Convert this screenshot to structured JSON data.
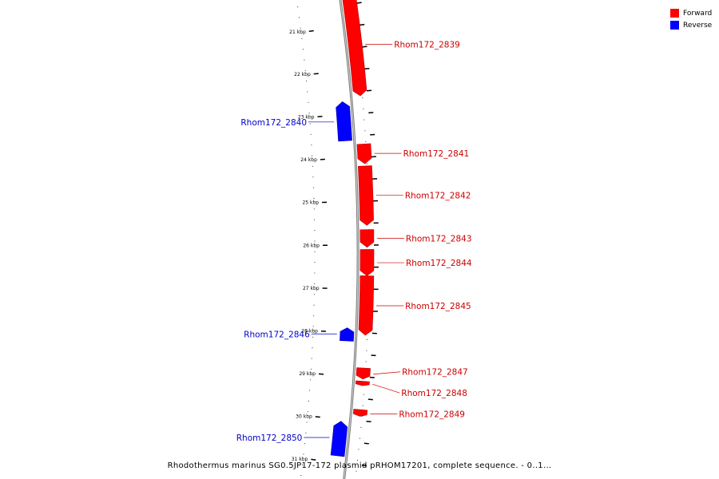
{
  "legend": {
    "forward": {
      "label": "Forward",
      "color": "#ff0000"
    },
    "reverse": {
      "label": "Reverse",
      "color": "#0000ff"
    }
  },
  "caption": "Rhodothermus marinus SG0.5JP17-172 plasmid pRHOM17201, complete sequence. - 0..1...",
  "ticks": [
    {
      "label": "21 kbp",
      "kbp": 21
    },
    {
      "label": "22 kbp",
      "kbp": 22
    },
    {
      "label": "23 kbp",
      "kbp": 23
    },
    {
      "label": "24 kbp",
      "kbp": 24
    },
    {
      "label": "25 kbp",
      "kbp": 25
    },
    {
      "label": "26 kbp",
      "kbp": 26
    },
    {
      "label": "27 kbp",
      "kbp": 27
    },
    {
      "label": "28 kbp",
      "kbp": 28
    },
    {
      "label": "29 kbp",
      "kbp": 29
    },
    {
      "label": "30 kbp",
      "kbp": 30
    },
    {
      "label": "31 kbp",
      "kbp": 31
    }
  ],
  "genes": [
    {
      "name": "Rhom172_2839",
      "strand": "forward",
      "start_kbp": 20.3,
      "end_kbp": 22.6
    },
    {
      "name": "Rhom172_2840",
      "strand": "reverse",
      "start_kbp": 22.7,
      "end_kbp": 23.6
    },
    {
      "name": "Rhom172_2841",
      "strand": "forward",
      "start_kbp": 23.7,
      "end_kbp": 24.15
    },
    {
      "name": "Rhom172_2842",
      "strand": "forward",
      "start_kbp": 24.2,
      "end_kbp": 25.55
    },
    {
      "name": "Rhom172_2843",
      "strand": "forward",
      "start_kbp": 25.65,
      "end_kbp": 26.05
    },
    {
      "name": "Rhom172_2844",
      "strand": "forward",
      "start_kbp": 26.1,
      "end_kbp": 26.7
    },
    {
      "name": "Rhom172_2845",
      "strand": "forward",
      "start_kbp": 26.7,
      "end_kbp": 28.05
    },
    {
      "name": "Rhom172_2846",
      "strand": "reverse",
      "start_kbp": 27.9,
      "end_kbp": 28.2
    },
    {
      "name": "Rhom172_2847",
      "strand": "forward",
      "start_kbp": 28.8,
      "end_kbp": 29.05
    },
    {
      "name": "Rhom172_2848",
      "strand": "forward",
      "start_kbp": 29.1,
      "end_kbp": 29.2
    },
    {
      "name": "Rhom172_2849",
      "strand": "forward",
      "start_kbp": 29.75,
      "end_kbp": 29.9
    },
    {
      "name": "Rhom172_2850",
      "strand": "reverse",
      "start_kbp": 30.05,
      "end_kbp": 30.85
    }
  ]
}
